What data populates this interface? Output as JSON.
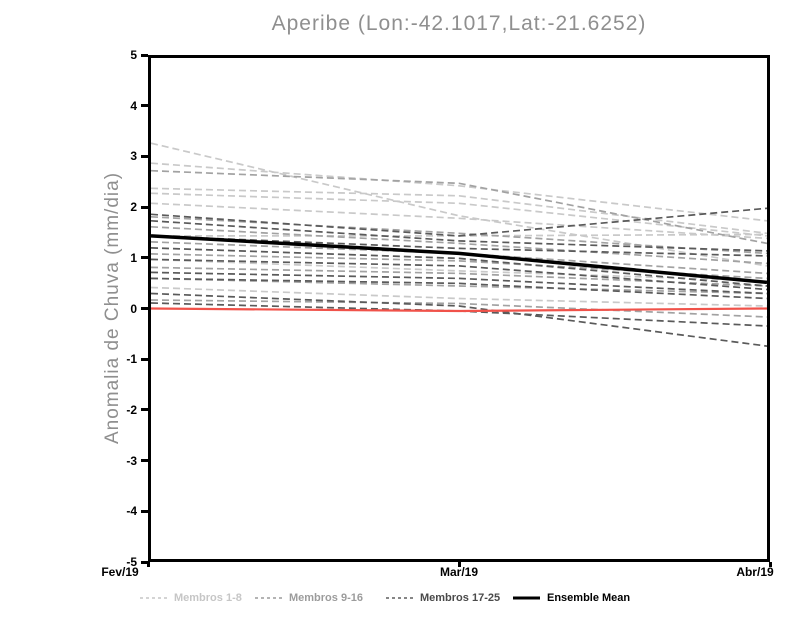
{
  "title": "Aperibe (Lon:-42.1017,Lat:-21.6252)",
  "axes": {
    "y": {
      "label": "Anomalia de Chuva (mm/dia)",
      "min": -5,
      "max": 5,
      "ticks": [
        "5",
        "4",
        "3",
        "2",
        "1",
        "0",
        "-1",
        "-2",
        "-3",
        "-4",
        "-5"
      ]
    },
    "x": {
      "ticks": [
        {
          "label": "Fev/19",
          "pos": 0
        },
        {
          "label": "Mar/19",
          "pos": 0.5
        },
        {
          "label": "Abr/19",
          "pos": 1
        }
      ]
    }
  },
  "legend": {
    "items": [
      {
        "label": "Membros 1-8",
        "color": "#c6c6c6",
        "style": "dashed"
      },
      {
        "label": "Membros 9-16",
        "color": "#9c9c9c",
        "style": "dashed"
      },
      {
        "label": "Membros 17-25",
        "color": "#5f5f5f",
        "style": "dashed"
      },
      {
        "label": "Ensemble Mean",
        "color": "#000000",
        "style": "solid"
      }
    ]
  },
  "chart_data": {
    "type": "line",
    "title": "Aperibe (Lon:-42.1017,Lat:-21.6252)",
    "xlabel": "",
    "ylabel": "Anomalia de Chuva (mm/dia)",
    "x": [
      "Fev/19",
      "Mar/19",
      "Abr/19"
    ],
    "ylim": [
      -5,
      5
    ],
    "grid": false,
    "legend_position": "bottom",
    "series_groups": [
      {
        "label": "Membros 1-8",
        "color": "#c9c9c9",
        "members": [
          [
            3.3,
            1.85,
            0.85
          ],
          [
            2.9,
            2.45,
            1.75
          ],
          [
            2.4,
            2.25,
            1.5
          ],
          [
            2.3,
            2.1,
            1.45
          ],
          [
            2.1,
            1.8,
            1.4
          ],
          [
            1.45,
            1.45,
            1.48
          ],
          [
            0.98,
            0.75,
            0.55
          ],
          [
            0.42,
            0.2,
            0.05
          ]
        ]
      },
      {
        "label": "Membros 9-16",
        "color": "#a2a2a2",
        "members": [
          [
            2.75,
            2.5,
            1.3
          ],
          [
            1.83,
            1.5,
            1.1
          ],
          [
            1.63,
            1.3,
            0.9
          ],
          [
            1.33,
            1.1,
            0.7
          ],
          [
            1.09,
            0.95,
            0.6
          ],
          [
            0.82,
            0.7,
            0.45
          ],
          [
            0.6,
            0.45,
            0.3
          ],
          [
            0.17,
            0.1,
            -0.17
          ]
        ]
      },
      {
        "label": "Membros 17-25",
        "color": "#5a5a5a",
        "members": [
          [
            1.88,
            1.45,
            2.0
          ],
          [
            1.75,
            1.35,
            1.15
          ],
          [
            1.45,
            1.2,
            1.05
          ],
          [
            1.21,
            1.0,
            0.45
          ],
          [
            0.98,
            0.85,
            0.38
          ],
          [
            0.72,
            0.6,
            0.3
          ],
          [
            0.6,
            0.5,
            0.2
          ],
          [
            0.3,
            0.05,
            -0.75
          ],
          [
            0.11,
            -0.05,
            -0.35
          ]
        ]
      }
    ],
    "ensemble_mean": {
      "label": "Ensemble Mean",
      "color": "#000000",
      "values": [
        1.45,
        1.1,
        0.52
      ]
    },
    "reference_line": {
      "color": "#f0524a",
      "values": [
        0.0,
        -0.05,
        0.0
      ]
    }
  }
}
